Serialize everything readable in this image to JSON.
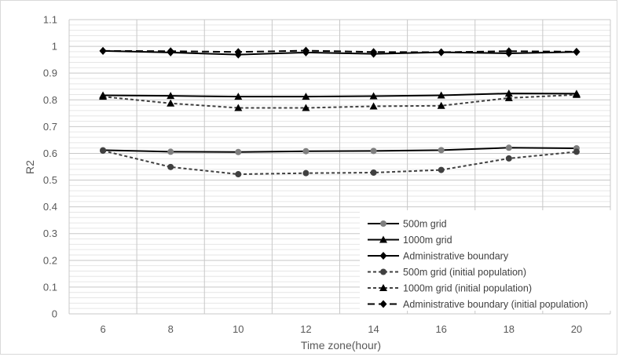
{
  "chart_data": {
    "type": "line",
    "title": "",
    "xlabel": "Time zone(hour)",
    "ylabel": "R2",
    "x": [
      6,
      8,
      10,
      12,
      14,
      16,
      18,
      20
    ],
    "x_tick_labels": [
      "6",
      "8",
      "10",
      "12",
      "14",
      "16",
      "18",
      "20"
    ],
    "ylim": [
      0,
      1.1
    ],
    "y_tick_labels": [
      "0",
      "0.1",
      "0.2",
      "0.3",
      "0.4",
      "0.5",
      "0.6",
      "0.7",
      "0.8",
      "0.9",
      "1",
      "1.1"
    ],
    "grid": true,
    "legend_position": "bottom-right",
    "series": [
      {
        "name": "500m grid",
        "values": [
          0.612,
          0.606,
          0.605,
          0.608,
          0.609,
          0.612,
          0.621,
          0.619
        ],
        "marker": "circle",
        "dash": "solid",
        "color": "#000000",
        "marker_color": "#7f7f7f"
      },
      {
        "name": "1000m grid",
        "values": [
          0.817,
          0.815,
          0.812,
          0.812,
          0.814,
          0.817,
          0.824,
          0.823
        ],
        "marker": "triangle",
        "dash": "solid",
        "color": "#000000",
        "marker_color": "#000000"
      },
      {
        "name": "Administrative boundary",
        "values": [
          0.983,
          0.977,
          0.969,
          0.977,
          0.972,
          0.978,
          0.974,
          0.979
        ],
        "marker": "diamond",
        "dash": "solid",
        "color": "#000000",
        "marker_color": "#000000"
      },
      {
        "name": "500m grid (initial population)",
        "values": [
          0.61,
          0.549,
          0.522,
          0.526,
          0.528,
          0.538,
          0.581,
          0.606
        ],
        "marker": "circle",
        "dash": "dotted",
        "color": "#404040",
        "marker_color": "#404040"
      },
      {
        "name": "1000m grid (initial population)",
        "values": [
          0.812,
          0.787,
          0.77,
          0.77,
          0.776,
          0.778,
          0.807,
          0.819
        ],
        "marker": "triangle",
        "dash": "dotted",
        "color": "#404040",
        "marker_color": "#000000"
      },
      {
        "name": "Administrative boundary  (initial population)",
        "values": [
          0.983,
          0.982,
          0.979,
          0.984,
          0.979,
          0.978,
          0.982,
          0.98
        ],
        "marker": "diamond",
        "dash": "dashed",
        "color": "#000000",
        "marker_color": "#000000"
      }
    ]
  }
}
